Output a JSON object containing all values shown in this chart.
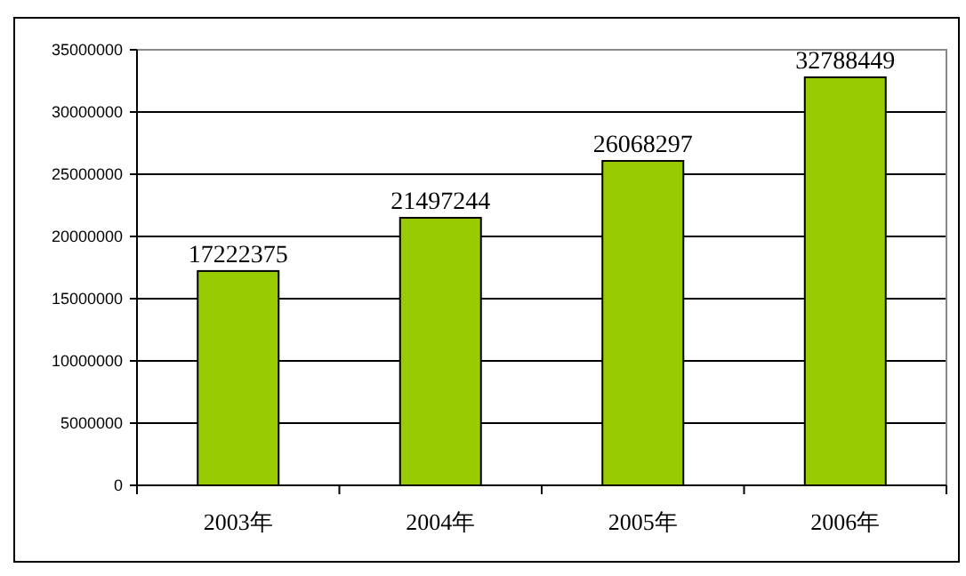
{
  "chart_data": {
    "type": "bar",
    "categories": [
      "2003年",
      "2004年",
      "2005年",
      "2006年"
    ],
    "values": [
      17222375,
      21497244,
      26068297,
      32788449
    ],
    "color": "#99cc00",
    "ylim": [
      0,
      35000000
    ],
    "yticks": [
      0,
      5000000,
      10000000,
      15000000,
      20000000,
      25000000,
      30000000,
      35000000
    ],
    "grid": "y",
    "data_labels": true
  }
}
